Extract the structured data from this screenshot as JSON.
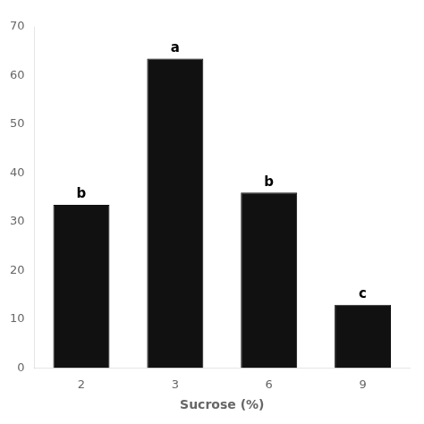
{
  "chart_data": {
    "type": "bar",
    "categories": [
      "2",
      "3",
      "6",
      "9"
    ],
    "values": [
      33.5,
      63.5,
      36.0,
      13.0
    ],
    "color": "#111111",
    "annotations": [
      "b",
      "a",
      "b",
      "c"
    ],
    "xlabel": "Sucrose (%)",
    "ylim": [
      0,
      70
    ],
    "yticks": [
      0,
      10,
      20,
      30,
      40,
      50,
      60,
      70
    ],
    "grid": false,
    "legend": false
  }
}
